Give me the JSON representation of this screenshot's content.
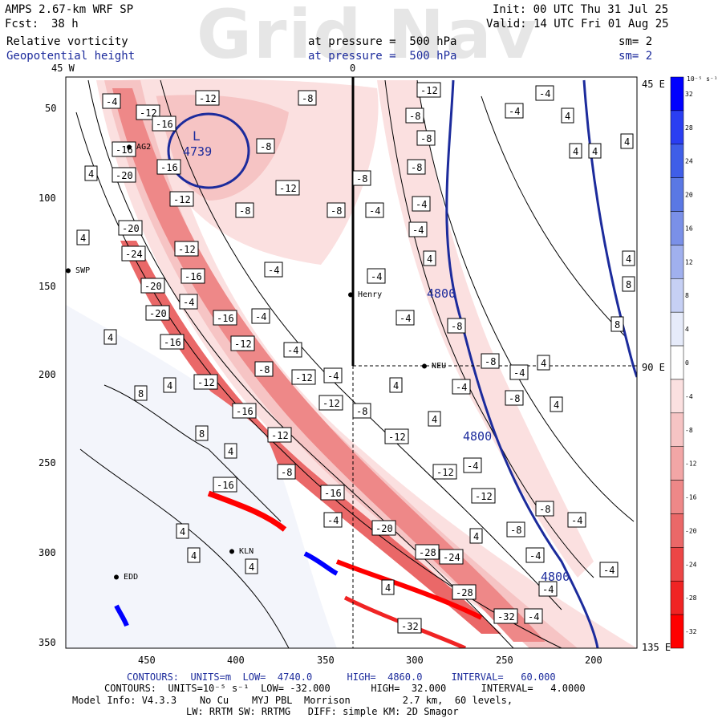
{
  "header": {
    "model": "AMPS 2.67-km WRF SP",
    "fcst_label": "Fcst:",
    "fcst_value": "38 h",
    "init": "Init: 00 UTC Thu 31 Jul 25",
    "valid": "Valid: 14 UTC Fri 01 Aug 25",
    "watermark": "Grid Nav",
    "field1": {
      "name": "Relative vorticity",
      "level": "at pressure =  500 hPa",
      "sm": "sm= 2"
    },
    "field2": {
      "name": "Geopotential height",
      "level": "at pressure =  500 hPa",
      "sm": "sm= 2"
    }
  },
  "map": {
    "top_labels": [
      "45 W",
      "0"
    ],
    "right_labels": [
      "45 E",
      "90 E",
      "135 E"
    ],
    "y_ticks": [
      "50",
      "100",
      "150",
      "200",
      "250",
      "300",
      "350"
    ],
    "x_ticks": [
      "450",
      "400",
      "350",
      "300",
      "250",
      "200"
    ],
    "stations": [
      "AG2",
      "SWP",
      "Henry",
      "NEU",
      "KLN",
      "EDD"
    ],
    "low_center": {
      "symbol": "L",
      "value": "4739"
    },
    "height_labels": [
      "4800",
      "4800",
      "4800"
    ],
    "vorticity_labels": {
      "negative": [
        "-4",
        "-8",
        "-12",
        "-16",
        "-20",
        "-24",
        "-28",
        "-32"
      ],
      "positive": [
        "4",
        "8"
      ]
    }
  },
  "colorbar": {
    "unit": "10⁻⁵ s⁻¹",
    "labels": [
      "32",
      "28",
      "24",
      "20",
      "16",
      "12",
      "8",
      "4",
      "0",
      "-4",
      "-8",
      "-12",
      "-16",
      "-20",
      "-24",
      "-28",
      "-32"
    ],
    "colors": [
      "#0000ff",
      "#2a3ef2",
      "#3f5ee8",
      "#5a78e4",
      "#7a90e8",
      "#a0b0ee",
      "#c6d0f4",
      "#e6ebfa",
      "#ffffff",
      "#fbe0e0",
      "#f6c4c4",
      "#f2a6a6",
      "#ee8888",
      "#ea6868",
      "#ec4646",
      "#f02424",
      "#ff0000"
    ]
  },
  "footer": {
    "line1": "CONTOURS:  UNITS=m  LOW=  4740.0      HIGH=  4860.0     INTERVAL=   60.000",
    "line2": "CONTOURS:  UNITS=10⁻⁵ s⁻¹  LOW= -32.000       HIGH=  32.000      INTERVAL=   4.0000",
    "line3": "Model Info: V4.3.3    No Cu    MYJ PBL  Morrison         2.7 km,  60 levels,",
    "line4": "LW: RRTM SW: RRTMG   DIFF: simple KM: 2D Smagor"
  },
  "colors": {
    "height_contour": "#1c2b9c",
    "vort_contour": "#000000"
  }
}
